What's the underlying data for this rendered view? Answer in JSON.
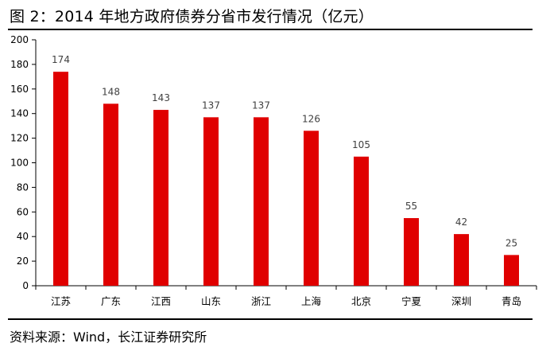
{
  "header": {
    "title": "图 2：2014 年地方政府债券分省市发行情况（亿元）"
  },
  "footer": {
    "source": "资料来源：Wind，长江证券研究所"
  },
  "colors": {
    "bar": "#e00000",
    "axis": "#000000",
    "label": "#404040"
  },
  "chart_data": {
    "type": "bar",
    "title": "",
    "xlabel": "",
    "ylabel": "",
    "categories": [
      "江苏",
      "广东",
      "江西",
      "山东",
      "浙江",
      "上海",
      "北京",
      "宁夏",
      "深圳",
      "青岛"
    ],
    "values": [
      174,
      148,
      143,
      137,
      137,
      126,
      105,
      55,
      42,
      25
    ],
    "ylim": [
      0,
      200
    ],
    "yticks": [
      0,
      20,
      40,
      60,
      80,
      100,
      120,
      140,
      160,
      180,
      200
    ],
    "grid": false,
    "legend": "none",
    "data_labels": true
  }
}
